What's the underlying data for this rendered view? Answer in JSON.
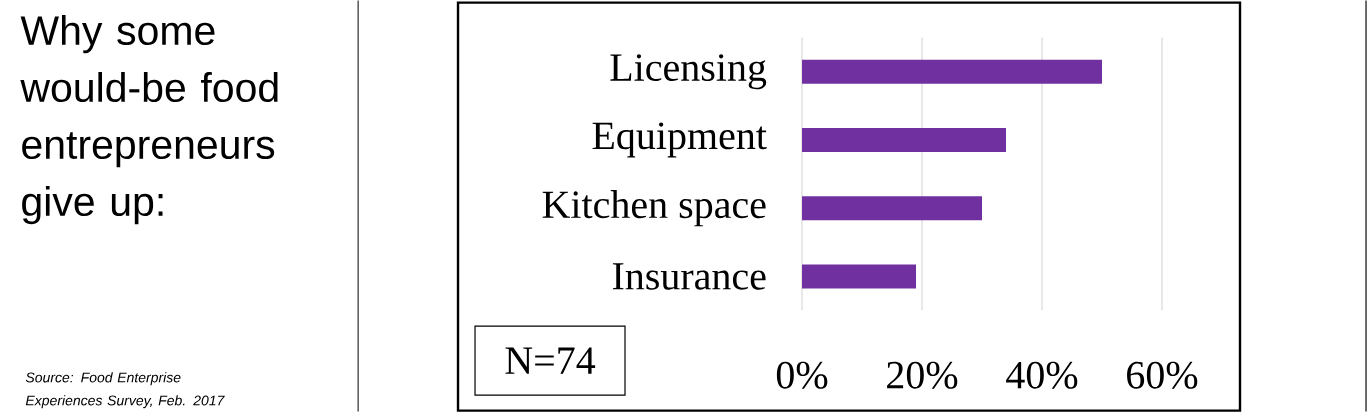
{
  "chart_data": {
    "type": "bar",
    "orientation": "horizontal",
    "title": "Why some would-be food entrepreneurs give up:",
    "categories": [
      "Licensing",
      "Equipment",
      "Kitchen space",
      "Insurance"
    ],
    "values": [
      50,
      34,
      30,
      19
    ],
    "color": "#7030a0",
    "xlim": [
      0,
      60
    ],
    "xticks": [
      {
        "value": 0,
        "label": "0%"
      },
      {
        "value": 20,
        "label": "20%"
      },
      {
        "value": 40,
        "label": "40%"
      },
      {
        "value": 60,
        "label": "60%"
      }
    ],
    "grid": "x",
    "annotations": [
      "Source: Food Enterprise Experiences Survey, Feb. 2017",
      "N=74"
    ]
  }
}
